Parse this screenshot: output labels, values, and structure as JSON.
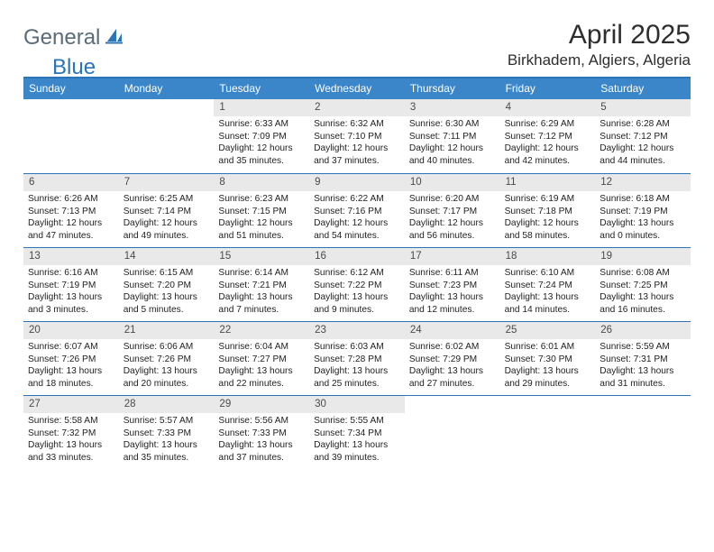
{
  "logo": {
    "text_general": "General",
    "text_blue": "Blue"
  },
  "header": {
    "month_title": "April 2025",
    "location": "Birkhadem, Algiers, Algeria"
  },
  "colors": {
    "header_bar": "#3b86c9",
    "rule": "#2a74b8",
    "day_number_bg": "#e9e9e9",
    "text": "#222222",
    "page_bg": "#ffffff"
  },
  "weekdays": [
    "Sunday",
    "Monday",
    "Tuesday",
    "Wednesday",
    "Thursday",
    "Friday",
    "Saturday"
  ],
  "layout": {
    "columns": 7,
    "first_weekday_index": 2,
    "days_in_month": 30
  },
  "days": [
    {
      "n": 1,
      "sunrise": "6:33 AM",
      "sunset": "7:09 PM",
      "daylight": "12 hours and 35 minutes."
    },
    {
      "n": 2,
      "sunrise": "6:32 AM",
      "sunset": "7:10 PM",
      "daylight": "12 hours and 37 minutes."
    },
    {
      "n": 3,
      "sunrise": "6:30 AM",
      "sunset": "7:11 PM",
      "daylight": "12 hours and 40 minutes."
    },
    {
      "n": 4,
      "sunrise": "6:29 AM",
      "sunset": "7:12 PM",
      "daylight": "12 hours and 42 minutes."
    },
    {
      "n": 5,
      "sunrise": "6:28 AM",
      "sunset": "7:12 PM",
      "daylight": "12 hours and 44 minutes."
    },
    {
      "n": 6,
      "sunrise": "6:26 AM",
      "sunset": "7:13 PM",
      "daylight": "12 hours and 47 minutes."
    },
    {
      "n": 7,
      "sunrise": "6:25 AM",
      "sunset": "7:14 PM",
      "daylight": "12 hours and 49 minutes."
    },
    {
      "n": 8,
      "sunrise": "6:23 AM",
      "sunset": "7:15 PM",
      "daylight": "12 hours and 51 minutes."
    },
    {
      "n": 9,
      "sunrise": "6:22 AM",
      "sunset": "7:16 PM",
      "daylight": "12 hours and 54 minutes."
    },
    {
      "n": 10,
      "sunrise": "6:20 AM",
      "sunset": "7:17 PM",
      "daylight": "12 hours and 56 minutes."
    },
    {
      "n": 11,
      "sunrise": "6:19 AM",
      "sunset": "7:18 PM",
      "daylight": "12 hours and 58 minutes."
    },
    {
      "n": 12,
      "sunrise": "6:18 AM",
      "sunset": "7:19 PM",
      "daylight": "13 hours and 0 minutes."
    },
    {
      "n": 13,
      "sunrise": "6:16 AM",
      "sunset": "7:19 PM",
      "daylight": "13 hours and 3 minutes."
    },
    {
      "n": 14,
      "sunrise": "6:15 AM",
      "sunset": "7:20 PM",
      "daylight": "13 hours and 5 minutes."
    },
    {
      "n": 15,
      "sunrise": "6:14 AM",
      "sunset": "7:21 PM",
      "daylight": "13 hours and 7 minutes."
    },
    {
      "n": 16,
      "sunrise": "6:12 AM",
      "sunset": "7:22 PM",
      "daylight": "13 hours and 9 minutes."
    },
    {
      "n": 17,
      "sunrise": "6:11 AM",
      "sunset": "7:23 PM",
      "daylight": "13 hours and 12 minutes."
    },
    {
      "n": 18,
      "sunrise": "6:10 AM",
      "sunset": "7:24 PM",
      "daylight": "13 hours and 14 minutes."
    },
    {
      "n": 19,
      "sunrise": "6:08 AM",
      "sunset": "7:25 PM",
      "daylight": "13 hours and 16 minutes."
    },
    {
      "n": 20,
      "sunrise": "6:07 AM",
      "sunset": "7:26 PM",
      "daylight": "13 hours and 18 minutes."
    },
    {
      "n": 21,
      "sunrise": "6:06 AM",
      "sunset": "7:26 PM",
      "daylight": "13 hours and 20 minutes."
    },
    {
      "n": 22,
      "sunrise": "6:04 AM",
      "sunset": "7:27 PM",
      "daylight": "13 hours and 22 minutes."
    },
    {
      "n": 23,
      "sunrise": "6:03 AM",
      "sunset": "7:28 PM",
      "daylight": "13 hours and 25 minutes."
    },
    {
      "n": 24,
      "sunrise": "6:02 AM",
      "sunset": "7:29 PM",
      "daylight": "13 hours and 27 minutes."
    },
    {
      "n": 25,
      "sunrise": "6:01 AM",
      "sunset": "7:30 PM",
      "daylight": "13 hours and 29 minutes."
    },
    {
      "n": 26,
      "sunrise": "5:59 AM",
      "sunset": "7:31 PM",
      "daylight": "13 hours and 31 minutes."
    },
    {
      "n": 27,
      "sunrise": "5:58 AM",
      "sunset": "7:32 PM",
      "daylight": "13 hours and 33 minutes."
    },
    {
      "n": 28,
      "sunrise": "5:57 AM",
      "sunset": "7:33 PM",
      "daylight": "13 hours and 35 minutes."
    },
    {
      "n": 29,
      "sunrise": "5:56 AM",
      "sunset": "7:33 PM",
      "daylight": "13 hours and 37 minutes."
    },
    {
      "n": 30,
      "sunrise": "5:55 AM",
      "sunset": "7:34 PM",
      "daylight": "13 hours and 39 minutes."
    }
  ],
  "labels": {
    "sunrise": "Sunrise:",
    "sunset": "Sunset:",
    "daylight": "Daylight:"
  }
}
